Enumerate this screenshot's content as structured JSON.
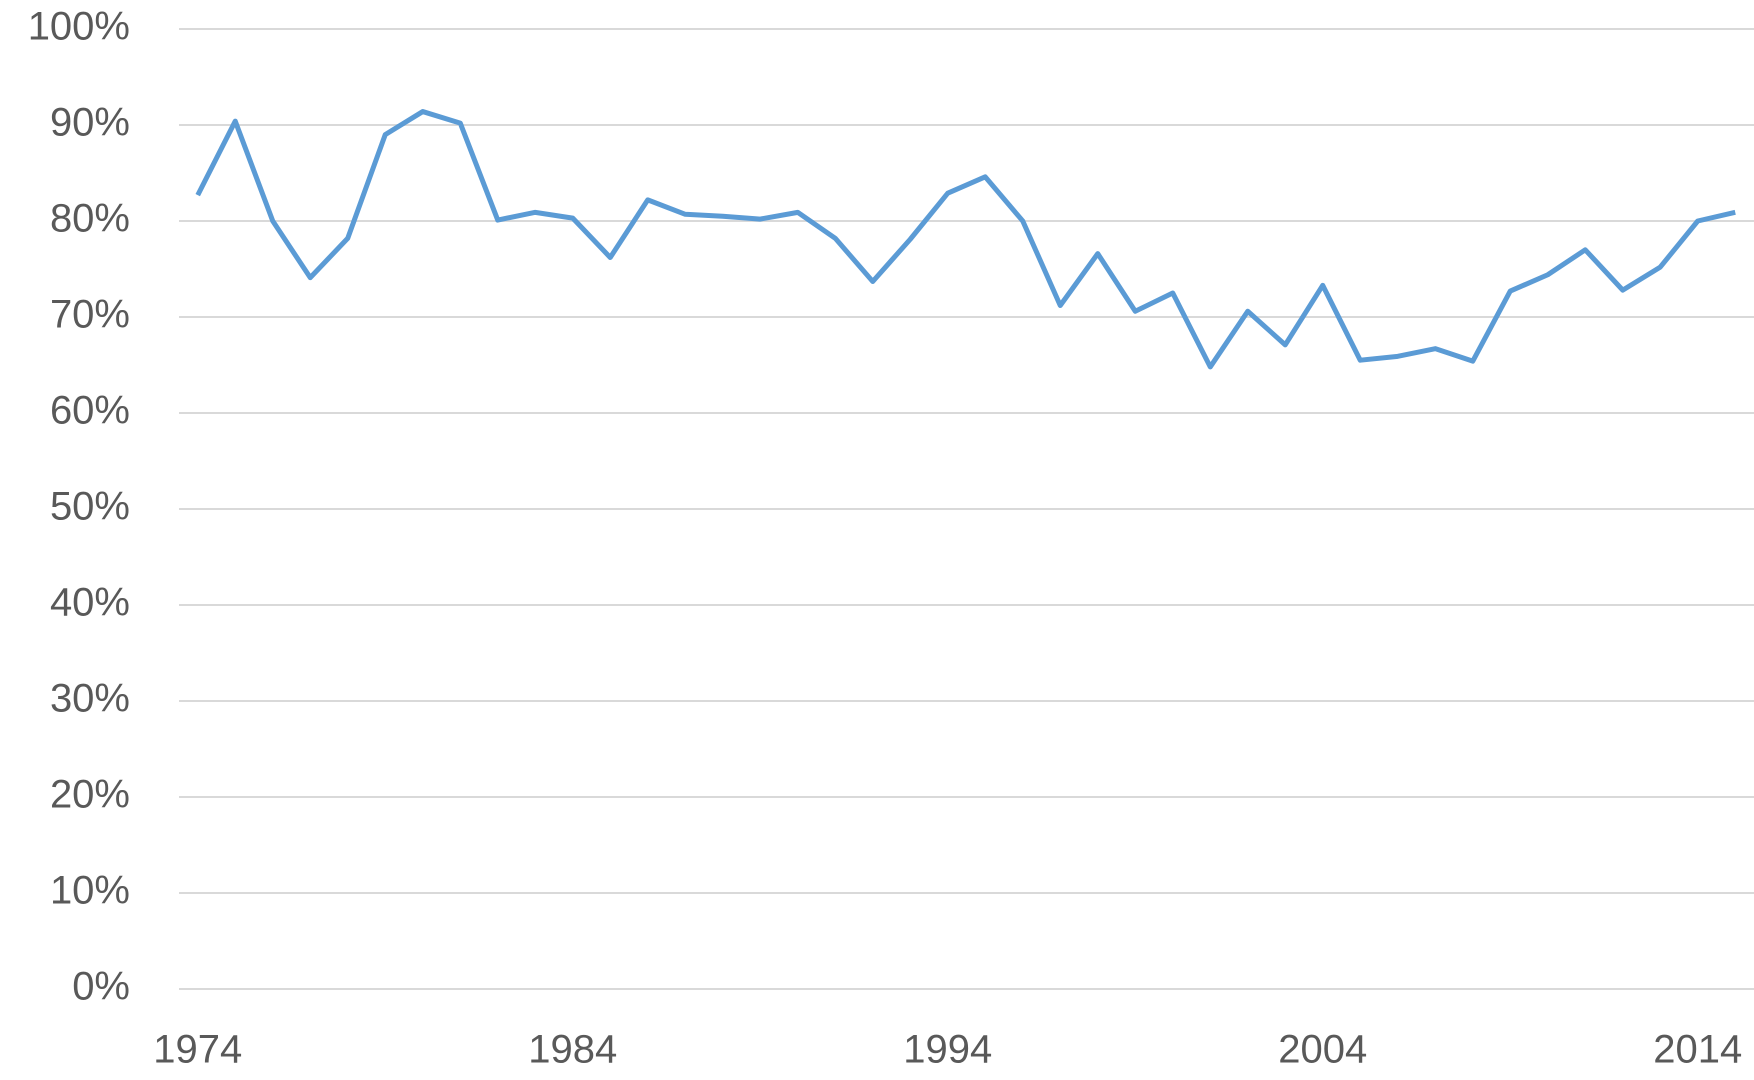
{
  "chart_data": {
    "type": "line",
    "x": [
      1974,
      1975,
      1976,
      1977,
      1978,
      1979,
      1980,
      1981,
      1982,
      1983,
      1984,
      1985,
      1986,
      1987,
      1988,
      1989,
      1990,
      1991,
      1992,
      1993,
      1994,
      1995,
      1996,
      1997,
      1998,
      1999,
      2000,
      2001,
      2002,
      2003,
      2004,
      2005,
      2006,
      2007,
      2008,
      2009,
      2010,
      2011,
      2012,
      2013,
      2014,
      2015
    ],
    "series": [
      {
        "color": "#5b9bd5",
        "values": [
          82.7,
          90.4,
          80.0,
          74.1,
          78.2,
          89.0,
          91.4,
          90.2,
          80.1,
          80.9,
          80.3,
          76.2,
          82.2,
          80.7,
          80.5,
          80.2,
          80.9,
          78.2,
          73.7,
          78.1,
          82.9,
          84.6,
          80.0,
          71.2,
          76.6,
          70.6,
          72.5,
          64.8,
          70.6,
          67.1,
          73.3,
          65.5,
          65.9,
          66.7,
          65.4,
          72.7,
          74.4,
          77.0,
          72.8,
          75.2,
          80.0,
          80.9
        ]
      }
    ],
    "xlim": [
      1973.5,
      2015.5
    ],
    "xticks": [
      1974,
      1984,
      1994,
      2004,
      2014
    ],
    "ylim": [
      0,
      100
    ],
    "yticks": [
      {
        "value": 0,
        "label": "0%"
      },
      {
        "value": 10,
        "label": "10%"
      },
      {
        "value": 20,
        "label": "20%"
      },
      {
        "value": 30,
        "label": "30%"
      },
      {
        "value": 40,
        "label": "40%"
      },
      {
        "value": 50,
        "label": "50%"
      },
      {
        "value": 60,
        "label": "60%"
      },
      {
        "value": 70,
        "label": "70%"
      },
      {
        "value": 80,
        "label": "80%"
      },
      {
        "value": 90,
        "label": "90%"
      },
      {
        "value": 100,
        "label": "100%"
      }
    ],
    "grid": true
  }
}
